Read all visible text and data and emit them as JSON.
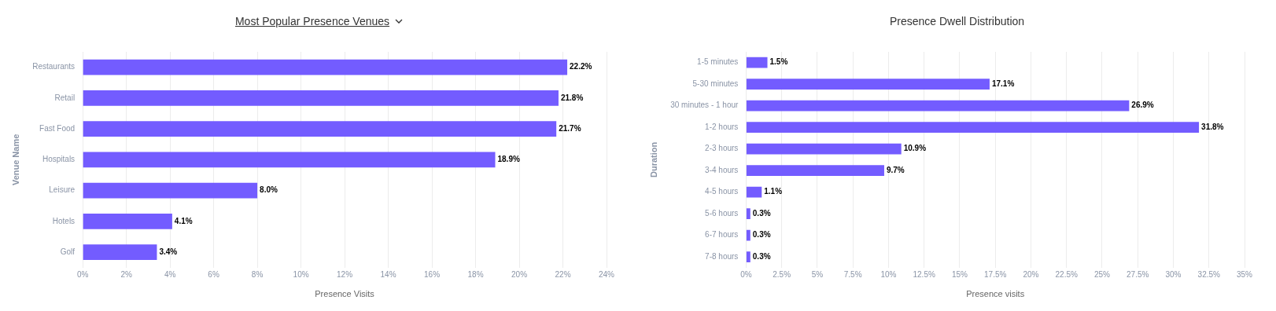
{
  "chart_data": [
    {
      "type": "bar",
      "orientation": "horizontal",
      "title": "Most Popular Presence Venues",
      "xlabel": "Presence Visits",
      "ylabel": "Venue Name",
      "categories": [
        "Restaurants",
        "Retail",
        "Fast Food",
        "Hospitals",
        "Leisure",
        "Hotels",
        "Golf"
      ],
      "values": [
        22.2,
        21.8,
        21.7,
        18.9,
        8.0,
        4.1,
        3.4
      ],
      "value_labels": [
        "22.2%",
        "21.8%",
        "21.7%",
        "18.9%",
        "8.0%",
        "4.1%",
        "3.4%"
      ],
      "color": "#735cff",
      "xlim": [
        0,
        24
      ],
      "xticks": [
        {
          "value": 0,
          "label": "0%"
        },
        {
          "value": 2,
          "label": "2%"
        },
        {
          "value": 4,
          "label": "4%"
        },
        {
          "value": 6,
          "label": "6%"
        },
        {
          "value": 8,
          "label": "8%"
        },
        {
          "value": 10,
          "label": "10%"
        },
        {
          "value": 12,
          "label": "12%"
        },
        {
          "value": 14,
          "label": "14%"
        },
        {
          "value": 16,
          "label": "16%"
        },
        {
          "value": 18,
          "label": "18%"
        },
        {
          "value": 20,
          "label": "20%"
        },
        {
          "value": 22,
          "label": "22%"
        },
        {
          "value": 24,
          "label": "24%"
        }
      ],
      "grid": "x"
    },
    {
      "type": "bar",
      "orientation": "horizontal",
      "title": "Presence Dwell Distribution",
      "xlabel": "Presence visits",
      "ylabel": "Duration",
      "categories": [
        "1-5 minutes",
        "5-30 minutes",
        "30 minutes - 1 hour",
        "1-2 hours",
        "2-3 hours",
        "3-4 hours",
        "4-5 hours",
        "5-6 hours",
        "6-7 hours",
        "7-8 hours"
      ],
      "values": [
        1.5,
        17.1,
        26.9,
        31.8,
        10.9,
        9.7,
        1.1,
        0.3,
        0.3,
        0.3
      ],
      "value_labels": [
        "1.5%",
        "17.1%",
        "26.9%",
        "31.8%",
        "10.9%",
        "9.7%",
        "1.1%",
        "0.3%",
        "0.3%",
        "0.3%"
      ],
      "color": "#735cff",
      "xlim": [
        0,
        35
      ],
      "xticks": [
        {
          "value": 0,
          "label": "0%"
        },
        {
          "value": 2.5,
          "label": "2.5%"
        },
        {
          "value": 5,
          "label": "5%"
        },
        {
          "value": 7.5,
          "label": "7.5%"
        },
        {
          "value": 10,
          "label": "10%"
        },
        {
          "value": 12.5,
          "label": "12.5%"
        },
        {
          "value": 15,
          "label": "15%"
        },
        {
          "value": 17.5,
          "label": "17.5%"
        },
        {
          "value": 20,
          "label": "20%"
        },
        {
          "value": 22.5,
          "label": "22.5%"
        },
        {
          "value": 25,
          "label": "25%"
        },
        {
          "value": 27.5,
          "label": "27.5%"
        },
        {
          "value": 30,
          "label": "30%"
        },
        {
          "value": 32.5,
          "label": "32.5%"
        },
        {
          "value": 35,
          "label": "35%"
        }
      ],
      "grid": "x"
    }
  ]
}
